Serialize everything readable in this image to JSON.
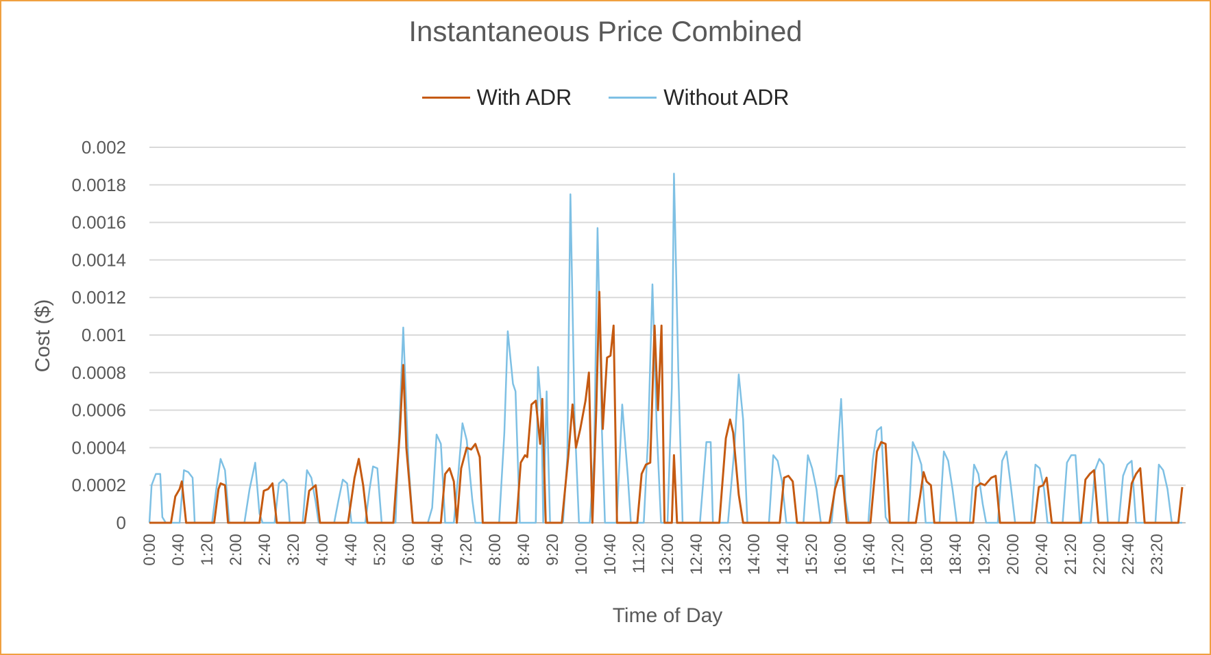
{
  "chart_data": {
    "type": "line",
    "title": "Instantaneous Price Combined",
    "xlabel": "Time of Day",
    "ylabel": "Cost ($)",
    "ylim": [
      0,
      0.002
    ],
    "y_ticks": [
      "0",
      "0.0002",
      "0.0004",
      "0.0006",
      "0.0008",
      "0.001",
      "0.0012",
      "0.0014",
      "0.0016",
      "0.0018",
      "0.002"
    ],
    "x_ticks": [
      "0:00",
      "0:40",
      "1:20",
      "2:00",
      "2:40",
      "3:20",
      "4:00",
      "4:40",
      "5:20",
      "6:00",
      "6:40",
      "7:20",
      "8:00",
      "8:40",
      "9:20",
      "10:00",
      "10:40",
      "11:20",
      "12:00",
      "12:40",
      "13:20",
      "14:00",
      "14:40",
      "15:20",
      "16:00",
      "16:40",
      "17:20",
      "18:00",
      "18:40",
      "19:20",
      "20:00",
      "20:40",
      "21:20",
      "22:00",
      "22:40",
      "23:20"
    ],
    "x_range_hours": [
      0,
      24
    ],
    "grid": true,
    "legend_position": "top-center",
    "series": [
      {
        "name": "With ADR",
        "color": "#c55a11",
        "points": [
          [
            0,
            0
          ],
          [
            0.5,
            0
          ],
          [
            0.6,
            0.00014
          ],
          [
            0.7,
            0.00018
          ],
          [
            0.75,
            0.00022
          ],
          [
            0.85,
            0
          ],
          [
            1.5,
            0
          ],
          [
            1.6,
            0.00018
          ],
          [
            1.65,
            0.00021
          ],
          [
            1.75,
            0.0002
          ],
          [
            1.82,
            0
          ],
          [
            2.55,
            0
          ],
          [
            2.65,
            0.00017
          ],
          [
            2.75,
            0.00018
          ],
          [
            2.85,
            0.00021
          ],
          [
            2.95,
            0
          ],
          [
            3.6,
            0
          ],
          [
            3.7,
            0.00017
          ],
          [
            3.8,
            0.00019
          ],
          [
            3.85,
            0.0002
          ],
          [
            3.95,
            0
          ],
          [
            4.6,
            0
          ],
          [
            4.75,
            0.00024
          ],
          [
            4.85,
            0.00034
          ],
          [
            4.95,
            0.0002
          ],
          [
            5.05,
            0
          ],
          [
            5.65,
            0
          ],
          [
            5.8,
            0.00048
          ],
          [
            5.88,
            0.00084
          ],
          [
            5.95,
            0.0004
          ],
          [
            6.1,
            0
          ],
          [
            6.75,
            0
          ],
          [
            6.85,
            0.00026
          ],
          [
            6.95,
            0.00029
          ],
          [
            7.05,
            0.00022
          ],
          [
            7.12,
            0
          ],
          [
            7.22,
            0.00029
          ],
          [
            7.35,
            0.0004
          ],
          [
            7.45,
            0.00039
          ],
          [
            7.55,
            0.00042
          ],
          [
            7.65,
            0.00035
          ],
          [
            7.72,
            0
          ],
          [
            8.5,
            0
          ],
          [
            8.6,
            0.00032
          ],
          [
            8.7,
            0.00036
          ],
          [
            8.75,
            0.00035
          ],
          [
            8.85,
            0.00063
          ],
          [
            8.95,
            0.00065
          ],
          [
            9.05,
            0.00042
          ],
          [
            9.1,
            0.00066
          ],
          [
            9.18,
            0
          ],
          [
            9.55,
            0
          ],
          [
            9.7,
            0.00035
          ],
          [
            9.8,
            0.00063
          ],
          [
            9.88,
            0.0004
          ],
          [
            9.98,
            0.0005
          ],
          [
            10.1,
            0.00065
          ],
          [
            10.18,
            0.0008
          ],
          [
            10.26,
            0
          ],
          [
            10.35,
            0.0006
          ],
          [
            10.42,
            0.00123
          ],
          [
            10.5,
            0.0005
          ],
          [
            10.6,
            0.00088
          ],
          [
            10.68,
            0.00089
          ],
          [
            10.75,
            0.00105
          ],
          [
            10.83,
            0
          ],
          [
            11.3,
            0
          ],
          [
            11.4,
            0.00026
          ],
          [
            11.5,
            0.00031
          ],
          [
            11.6,
            0.00032
          ],
          [
            11.7,
            0.00105
          ],
          [
            11.78,
            0.0006
          ],
          [
            11.86,
            0.00105
          ],
          [
            11.93,
            0
          ],
          [
            12.1,
            0
          ],
          [
            12.15,
            0.00036
          ],
          [
            12.22,
            0
          ],
          [
            13.2,
            0
          ],
          [
            13.35,
            0.00045
          ],
          [
            13.45,
            0.00055
          ],
          [
            13.52,
            0.00048
          ],
          [
            13.65,
            0.00015
          ],
          [
            13.75,
            0
          ],
          [
            14.6,
            0
          ],
          [
            14.7,
            0.00024
          ],
          [
            14.8,
            0.00025
          ],
          [
            14.9,
            0.00022
          ],
          [
            15,
            0
          ],
          [
            15.75,
            0
          ],
          [
            15.88,
            0.00018
          ],
          [
            15.98,
            0.00025
          ],
          [
            16.05,
            0.00025
          ],
          [
            16.15,
            0
          ],
          [
            16.7,
            0
          ],
          [
            16.85,
            0.00038
          ],
          [
            16.95,
            0.00043
          ],
          [
            17.05,
            0.00042
          ],
          [
            17.15,
            0
          ],
          [
            17.75,
            0
          ],
          [
            17.85,
            0.00014
          ],
          [
            17.93,
            0.00027
          ],
          [
            18.0,
            0.00022
          ],
          [
            18.1,
            0.0002
          ],
          [
            18.18,
            0
          ],
          [
            19.08,
            0
          ],
          [
            19.15,
            0.00019
          ],
          [
            19.25,
            0.00021
          ],
          [
            19.35,
            0.0002
          ],
          [
            19.5,
            0.00024
          ],
          [
            19.6,
            0.00025
          ],
          [
            19.7,
            0
          ],
          [
            20.5,
            0
          ],
          [
            20.6,
            0.00019
          ],
          [
            20.7,
            0.0002
          ],
          [
            20.78,
            0.00024
          ],
          [
            20.9,
            0
          ],
          [
            21.58,
            0
          ],
          [
            21.68,
            0.00023
          ],
          [
            21.78,
            0.00026
          ],
          [
            21.88,
            0.00028
          ],
          [
            21.98,
            0
          ],
          [
            22.65,
            0
          ],
          [
            22.75,
            0.00021
          ],
          [
            22.85,
            0.00026
          ],
          [
            22.95,
            0.00029
          ],
          [
            23.05,
            0
          ],
          [
            23.83,
            0
          ],
          [
            23.92,
            0.00019
          ]
        ]
      },
      {
        "name": "Without ADR",
        "color": "#7ec0e4",
        "points": [
          [
            0,
            0
          ],
          [
            0.05,
            0.0002
          ],
          [
            0.15,
            0.00026
          ],
          [
            0.25,
            0.00026
          ],
          [
            0.3,
            3e-05
          ],
          [
            0.38,
            0
          ],
          [
            0.7,
            0
          ],
          [
            0.8,
            0.00028
          ],
          [
            0.9,
            0.00027
          ],
          [
            1.0,
            0.00024
          ],
          [
            1.05,
            0
          ],
          [
            1.45,
            0
          ],
          [
            1.55,
            0.00018
          ],
          [
            1.65,
            0.00034
          ],
          [
            1.75,
            0.00028
          ],
          [
            1.85,
            0
          ],
          [
            2.2,
            0
          ],
          [
            2.32,
            0.00018
          ],
          [
            2.45,
            0.00032
          ],
          [
            2.55,
            5e-05
          ],
          [
            2.62,
            0
          ],
          [
            2.9,
            0
          ],
          [
            3.0,
            0.00021
          ],
          [
            3.1,
            0.00023
          ],
          [
            3.18,
            0.00021
          ],
          [
            3.25,
            0
          ],
          [
            3.55,
            0
          ],
          [
            3.65,
            0.00028
          ],
          [
            3.75,
            0.00024
          ],
          [
            3.85,
            0.00011
          ],
          [
            3.92,
            0
          ],
          [
            4.28,
            0
          ],
          [
            4.38,
            0.00012
          ],
          [
            4.48,
            0.00023
          ],
          [
            4.58,
            0.00021
          ],
          [
            4.68,
            0
          ],
          [
            5.0,
            0
          ],
          [
            5.1,
            0.00018
          ],
          [
            5.18,
            0.0003
          ],
          [
            5.28,
            0.00029
          ],
          [
            5.38,
            0
          ],
          [
            5.7,
            0
          ],
          [
            5.88,
            0.00104
          ],
          [
            6.0,
            0.00032
          ],
          [
            6.1,
            0
          ],
          [
            6.45,
            0
          ],
          [
            6.55,
            8e-05
          ],
          [
            6.65,
            0.00047
          ],
          [
            6.75,
            0.00042
          ],
          [
            6.85,
            0
          ],
          [
            7.05,
            0
          ],
          [
            7.15,
            0.00025
          ],
          [
            7.25,
            0.00053
          ],
          [
            7.35,
            0.00044
          ],
          [
            7.48,
            0.00012
          ],
          [
            7.55,
            0
          ],
          [
            8.1,
            0
          ],
          [
            8.22,
            0.00048
          ],
          [
            8.3,
            0.00102
          ],
          [
            8.42,
            0.00074
          ],
          [
            8.48,
            0.0007
          ],
          [
            8.58,
            0
          ],
          [
            8.95,
            0
          ],
          [
            9.0,
            0.00083
          ],
          [
            9.08,
            0.0006
          ],
          [
            9.12,
            0
          ],
          [
            9.2,
            0.0007
          ],
          [
            9.28,
            0
          ],
          [
            9.58,
            0
          ],
          [
            9.68,
            0.00035
          ],
          [
            9.75,
            0.00175
          ],
          [
            9.85,
            0.00055
          ],
          [
            9.95,
            0
          ],
          [
            10.2,
            0
          ],
          [
            10.3,
            0.00035
          ],
          [
            10.38,
            0.00157
          ],
          [
            10.48,
            0.0005
          ],
          [
            10.55,
            0
          ],
          [
            10.82,
            0
          ],
          [
            10.95,
            0.00063
          ],
          [
            11.08,
            0.00025
          ],
          [
            11.15,
            0
          ],
          [
            11.45,
            0
          ],
          [
            11.55,
            0.00045
          ],
          [
            11.65,
            0.00127
          ],
          [
            11.75,
            0.0005
          ],
          [
            11.85,
            0
          ],
          [
            12.0,
            0
          ],
          [
            12.1,
            0.00072
          ],
          [
            12.15,
            0.00186
          ],
          [
            12.25,
            0.0008
          ],
          [
            12.35,
            0
          ],
          [
            12.75,
            0
          ],
          [
            12.9,
            0.00043
          ],
          [
            13.0,
            0.00043
          ],
          [
            13.05,
            0
          ],
          [
            13.4,
            0
          ],
          [
            13.55,
            0.0004
          ],
          [
            13.65,
            0.00079
          ],
          [
            13.75,
            0.00055
          ],
          [
            13.85,
            0
          ],
          [
            14.35,
            0
          ],
          [
            14.45,
            0.00036
          ],
          [
            14.55,
            0.00033
          ],
          [
            14.65,
            0.00022
          ],
          [
            14.75,
            0
          ],
          [
            15.15,
            0
          ],
          [
            15.25,
            0.00036
          ],
          [
            15.35,
            0.00029
          ],
          [
            15.45,
            0.00018
          ],
          [
            15.55,
            0
          ],
          [
            15.8,
            0
          ],
          [
            15.9,
            0.00025
          ],
          [
            16.02,
            0.00066
          ],
          [
            16.12,
            0.00012
          ],
          [
            16.2,
            0
          ],
          [
            16.65,
            0
          ],
          [
            16.75,
            0.00033
          ],
          [
            16.85,
            0.00049
          ],
          [
            16.95,
            0.00051
          ],
          [
            17.05,
            3e-05
          ],
          [
            17.12,
            0
          ],
          [
            17.58,
            0
          ],
          [
            17.68,
            0.00043
          ],
          [
            17.78,
            0.00038
          ],
          [
            17.88,
            0.00031
          ],
          [
            17.98,
            0
          ],
          [
            18.3,
            0
          ],
          [
            18.4,
            0.00038
          ],
          [
            18.5,
            0.00033
          ],
          [
            18.6,
            0.00018
          ],
          [
            18.7,
            0
          ],
          [
            19.0,
            0
          ],
          [
            19.1,
            0.00031
          ],
          [
            19.2,
            0.00026
          ],
          [
            19.3,
            0.0001
          ],
          [
            19.38,
            0
          ],
          [
            19.65,
            0
          ],
          [
            19.75,
            0.00033
          ],
          [
            19.85,
            0.00038
          ],
          [
            19.95,
            0.0002
          ],
          [
            20.05,
            0
          ],
          [
            20.42,
            0
          ],
          [
            20.52,
            0.00031
          ],
          [
            20.62,
            0.00029
          ],
          [
            20.72,
            0.00018
          ],
          [
            20.8,
            0
          ],
          [
            21.15,
            0
          ],
          [
            21.25,
            0.00032
          ],
          [
            21.35,
            0.00036
          ],
          [
            21.45,
            0.00036
          ],
          [
            21.55,
            0
          ],
          [
            21.8,
            0
          ],
          [
            21.9,
            0.00028
          ],
          [
            22.0,
            0.00034
          ],
          [
            22.1,
            0.00031
          ],
          [
            22.2,
            0
          ],
          [
            22.45,
            0
          ],
          [
            22.55,
            0.00025
          ],
          [
            22.65,
            0.00031
          ],
          [
            22.75,
            0.00033
          ],
          [
            22.85,
            0
          ],
          [
            23.3,
            0
          ],
          [
            23.38,
            0.00031
          ],
          [
            23.48,
            0.00028
          ],
          [
            23.58,
            0.00018
          ],
          [
            23.68,
            0
          ],
          [
            23.92,
            0
          ]
        ]
      }
    ]
  }
}
